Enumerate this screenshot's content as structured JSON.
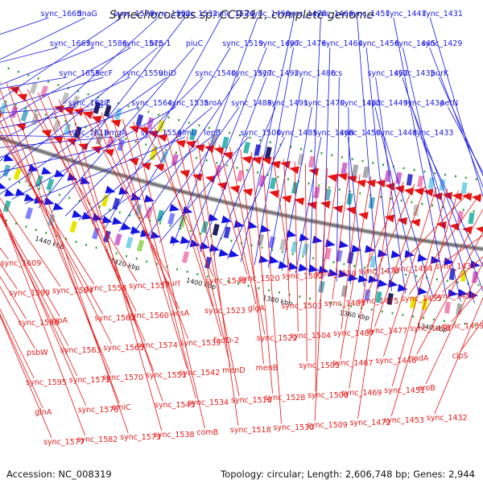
{
  "title": "Synechococcus sp. CC9311, complete genome",
  "footer": {
    "accession": "Accession: NC_008319",
    "topology": "Topology: circular; Length: 2,606,748 bp; Genes: 2,944"
  },
  "colors": {
    "forward": "#1414e6",
    "reverse": "#e61414",
    "backbone": "#777777",
    "ticks": "#2e9e2e"
  },
  "kbp_labels": [
    "1500 kbp",
    "1480 kbp",
    "1460 kbp",
    "1440 kbp",
    "1420 kbp",
    "1400 kbp",
    "1380 kbp",
    "1360 kbp",
    "1340 kbp",
    "1320 kbp"
  ],
  "top_labels": [
    "sync_1665",
    "sync_1663",
    "sync_1655",
    "sync_1617",
    "sync_1615",
    "dnaG",
    "sync_1586",
    "secF",
    "ispE",
    "pmgA",
    "sync_1578",
    "sync_1575",
    "sync_1559",
    "sync_1564",
    "sync_1554",
    "sync_1552",
    "bcp-1",
    "ubiD",
    "sync_1535",
    "glmU",
    "sync_1532",
    "piuC",
    "sync_1540",
    "aroA",
    "lepB",
    "sync_1524",
    "sync_1519",
    "sync_1517",
    "sync_1488",
    "sync_1500",
    "sync_1490",
    "sync_1497",
    "sync_1492",
    "sync_1491",
    "sync_1485",
    "sync_1473",
    "sync_1476",
    "sync_1486",
    "sync_1470",
    "sync_1468",
    "sync_1466",
    "sync_1464",
    "rcs",
    "sync_1462",
    "sync_1450",
    "sync_1457",
    "sync_1456",
    "sync_1452",
    "sync_1449",
    "sync_1448",
    "sync_1447",
    "sync_1445",
    "sync_1435",
    "sync_1434",
    "sync_1433",
    "sync_1431",
    "sync_1429",
    "purK",
    "petN"
  ],
  "bottom_labels": [
    "sync_1609",
    "sync_1599",
    "sync_1598",
    "psbW",
    "sync_1595",
    "glnA",
    "sync_1577",
    "sync_1584",
    "ispA",
    "sync_1563",
    "sync_1571",
    "sync_1576",
    "sync_1582",
    "sync_1558",
    "sync_1562",
    "sync_1565",
    "sync_1570",
    "amiC",
    "sync_1573",
    "sync_1557",
    "sync_1560",
    "sync_1574",
    "sync_1551",
    "sync_1545",
    "sync_1538",
    "murI",
    "acsA",
    "sync_1539",
    "sync_1542",
    "sync_1534",
    "comB",
    "sync_1548",
    "sync_1523",
    "fadD-2",
    "menD",
    "sync_1516",
    "sync_1518",
    "sync_1520",
    "glgA",
    "sync_1522",
    "menB",
    "sync_1528",
    "sync_1530",
    "sync_1502",
    "sync_1503",
    "sync_1504",
    "sync_1505",
    "sync_1508",
    "sync_1509",
    "sync_1510",
    "sync_1483",
    "sync_1487",
    "sync_1467",
    "sync_1469",
    "sync_1472",
    "sync_1474",
    "sync_1475",
    "sync_1477",
    "sync_1446",
    "sync_1451",
    "sync_1453",
    "sync_1454",
    "sync_1455",
    "sync_1458",
    "nadA",
    "aroB",
    "sync_1432",
    "sync_1437",
    "sync_1438",
    "sync_1439",
    "clpS"
  ]
}
